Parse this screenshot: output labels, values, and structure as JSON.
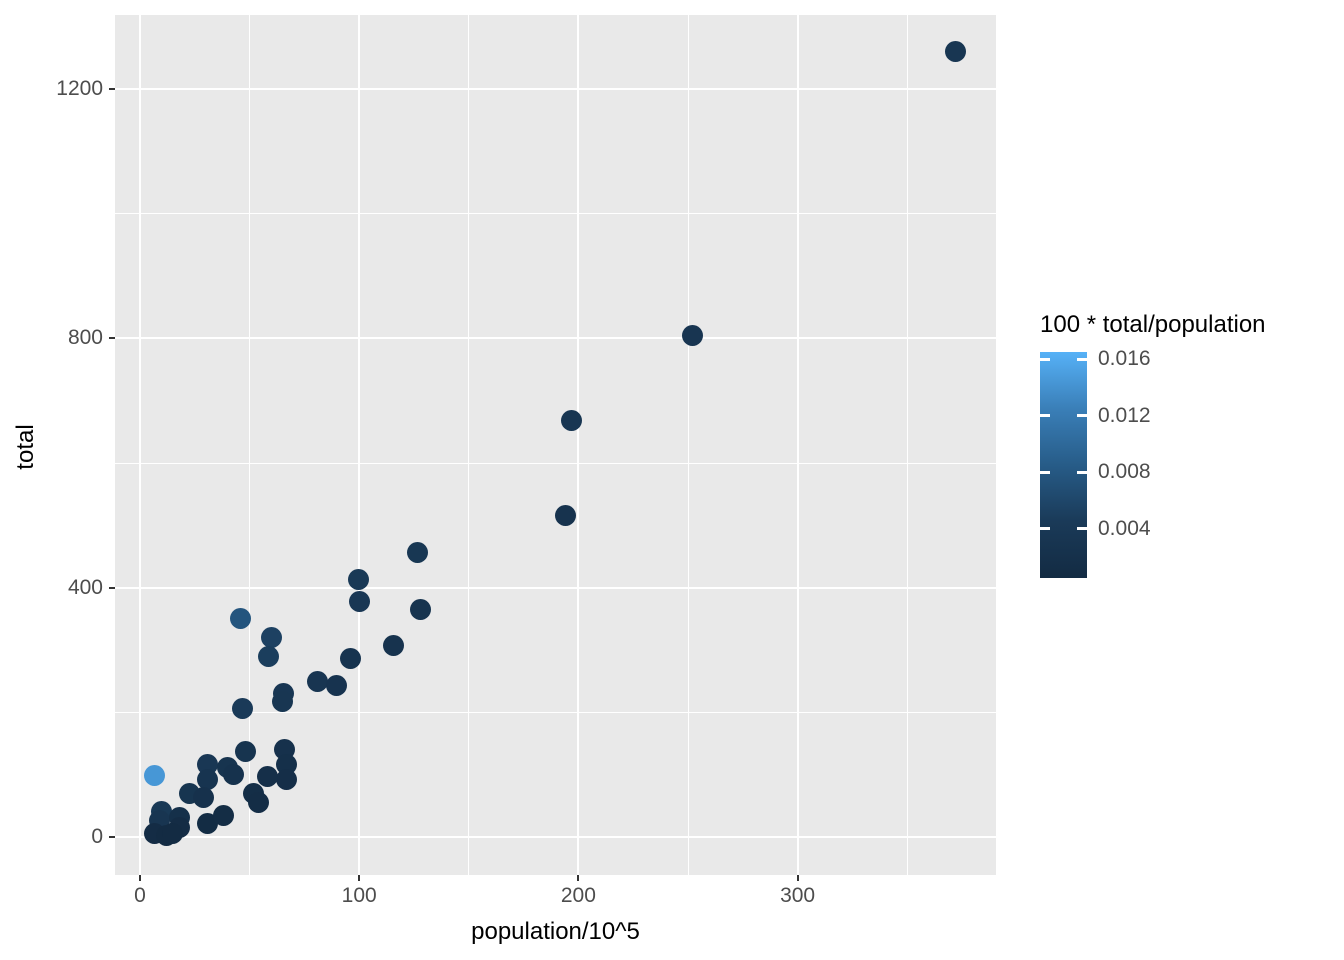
{
  "chart_data": {
    "type": "scatter",
    "title": "",
    "xlabel": "population/10^5",
    "ylabel": "total",
    "x_ticks": [
      0,
      100,
      200,
      300
    ],
    "x_tick_labels": [
      "0",
      "100",
      "200",
      "300"
    ],
    "x_minor_ticks": [
      50,
      150,
      250,
      350
    ],
    "y_ticks": [
      0,
      400,
      800,
      1200
    ],
    "y_tick_labels": [
      "0",
      "400",
      "800",
      "1200"
    ],
    "y_minor_ticks": [
      200,
      600,
      1000
    ],
    "xlim": [
      -11.4,
      390.6
    ],
    "ylim": [
      -61,
      1319
    ],
    "grid": "white major and minor gridlines on grey panel",
    "legend": {
      "title": "100 * total/population",
      "position": "right",
      "type": "colorbar",
      "tick_values": [
        0.016,
        0.012,
        0.008,
        0.004
      ],
      "tick_labels": [
        "0.016",
        "0.012",
        "0.008",
        "0.004"
      ],
      "domain": [
        0.0005,
        0.0165
      ],
      "low_color": "#132B43",
      "high_color": "#56B1F7"
    },
    "color_rule": "point color encodes 100*total/population = y/(1000*x), mapped on legend domain from low_color to high_color",
    "points": [
      {
        "x": 372,
        "y": 1260
      },
      {
        "x": 252,
        "y": 805
      },
      {
        "x": 197,
        "y": 668
      },
      {
        "x": 194,
        "y": 516
      },
      {
        "x": 126.5,
        "y": 456
      },
      {
        "x": 99.5,
        "y": 413
      },
      {
        "x": 100,
        "y": 378
      },
      {
        "x": 128,
        "y": 365
      },
      {
        "x": 46,
        "y": 351
      },
      {
        "x": 60,
        "y": 320
      },
      {
        "x": 58.5,
        "y": 289
      },
      {
        "x": 115.5,
        "y": 308
      },
      {
        "x": 96,
        "y": 286
      },
      {
        "x": 81,
        "y": 249
      },
      {
        "x": 89.5,
        "y": 243
      },
      {
        "x": 65.3,
        "y": 231
      },
      {
        "x": 64.8,
        "y": 217
      },
      {
        "x": 46.6,
        "y": 206
      },
      {
        "x": 48,
        "y": 137
      },
      {
        "x": 65.8,
        "y": 140
      },
      {
        "x": 66.7,
        "y": 116
      },
      {
        "x": 67,
        "y": 92
      },
      {
        "x": 58,
        "y": 97
      },
      {
        "x": 31,
        "y": 117
      },
      {
        "x": 30.6,
        "y": 92
      },
      {
        "x": 39.7,
        "y": 112
      },
      {
        "x": 42.5,
        "y": 100
      },
      {
        "x": 6.8,
        "y": 98
      },
      {
        "x": 22.8,
        "y": 70
      },
      {
        "x": 29,
        "y": 64
      },
      {
        "x": 10,
        "y": 41
      },
      {
        "x": 8.7,
        "y": 27
      },
      {
        "x": 17.8,
        "y": 32
      },
      {
        "x": 17.8,
        "y": 16
      },
      {
        "x": 6.8,
        "y": 6
      },
      {
        "x": 12.3,
        "y": 2
      },
      {
        "x": 15,
        "y": 5
      },
      {
        "x": 30.6,
        "y": 22
      },
      {
        "x": 38,
        "y": 35
      },
      {
        "x": 51.6,
        "y": 70
      },
      {
        "x": 54,
        "y": 56
      }
    ]
  },
  "colors": {
    "panel_background": "#E9E9E9",
    "gridline": "#FFFFFF",
    "tick_mark": "#333333",
    "tick_label": "#4D4D4D",
    "axis_title": "#000000",
    "page_background": "#FFFFFF"
  }
}
